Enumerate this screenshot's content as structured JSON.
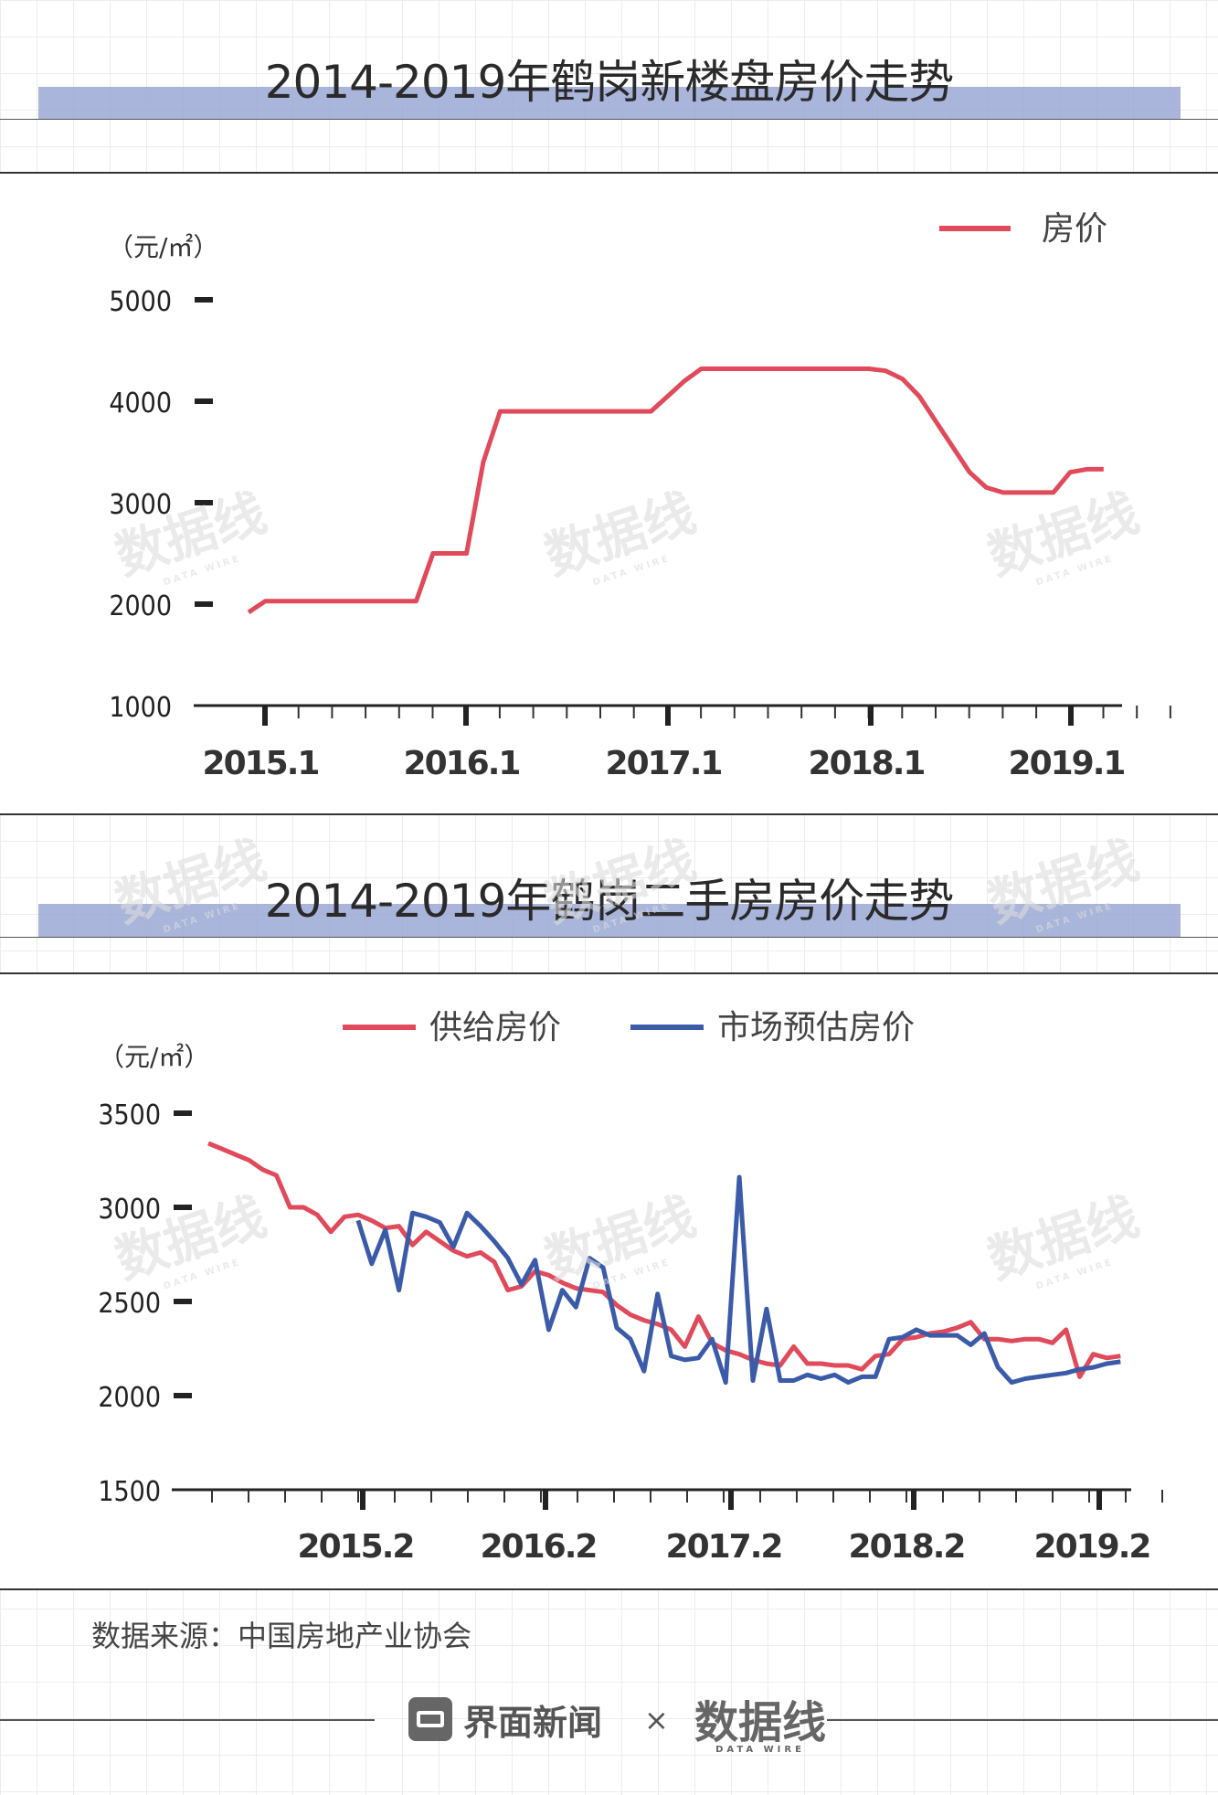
{
  "chart1": {
    "title": "2014-2019年鹤岗新楼盘房价走势",
    "unit": "（元/㎡）",
    "legend": [
      "房价"
    ],
    "chart_data": {
      "type": "line",
      "title": "2014-2019年鹤岗新楼盘房价走势",
      "ylabel": "（元/㎡）",
      "ylim": [
        1000,
        5000
      ],
      "yticks": [
        "5000",
        "4000",
        "3000",
        "2000",
        "1000"
      ],
      "xticks": [
        "2015.1",
        "2016.1",
        "2017.1",
        "2018.1",
        "2019.1"
      ],
      "series": [
        {
          "name": "房价",
          "color": "#e04a5a",
          "x": [
            "2014.12",
            "2015.1",
            "2015.2",
            "2015.3",
            "2015.4",
            "2015.5",
            "2015.6",
            "2015.7",
            "2015.8",
            "2015.9",
            "2015.10",
            "2015.11",
            "2015.12",
            "2016.1",
            "2016.2",
            "2016.3",
            "2016.4",
            "2016.5",
            "2016.6",
            "2016.7",
            "2016.8",
            "2016.9",
            "2016.10",
            "2016.11",
            "2016.12",
            "2017.1",
            "2017.2",
            "2017.3",
            "2017.4",
            "2017.5",
            "2017.6",
            "2017.7",
            "2017.8",
            "2017.9",
            "2017.10",
            "2017.11",
            "2017.12",
            "2018.1",
            "2018.2",
            "2018.3",
            "2018.4",
            "2018.5",
            "2018.6",
            "2018.7",
            "2018.8",
            "2018.9",
            "2018.10",
            "2018.11",
            "2018.12",
            "2019.1",
            "2019.2",
            "2019.3"
          ],
          "values": [
            1920,
            2030,
            2030,
            2030,
            2030,
            2030,
            2030,
            2030,
            2030,
            2030,
            2030,
            2500,
            2500,
            2500,
            3400,
            3900,
            3900,
            3900,
            3900,
            3900,
            3900,
            3900,
            3900,
            3900,
            3900,
            4050,
            4200,
            4320,
            4320,
            4320,
            4320,
            4320,
            4320,
            4320,
            4320,
            4320,
            4320,
            4320,
            4300,
            4220,
            4050,
            3800,
            3550,
            3300,
            3150,
            3100,
            3100,
            3100,
            3100,
            3300,
            3330,
            3330
          ]
        }
      ]
    }
  },
  "chart2": {
    "title": "2014-2019年鹤岗二手房房价走势",
    "unit": "（元/㎡）",
    "legend": [
      "供给房价",
      "市场预估房价"
    ],
    "chart_data": {
      "type": "line",
      "title": "2014-2019年鹤岗二手房房价走势",
      "ylabel": "（元/㎡）",
      "ylim": [
        1500,
        3500
      ],
      "yticks": [
        "3500",
        "3000",
        "2500",
        "2000",
        "1500"
      ],
      "xticks": [
        "2015.2",
        "2016.2",
        "2017.2",
        "2018.2",
        "2019.2"
      ],
      "x_start": "2014.4",
      "series": [
        {
          "name": "供给房价",
          "color": "#e04a5a",
          "values": [
            3340,
            3310,
            3280,
            3250,
            3200,
            3170,
            3000,
            3000,
            2960,
            2870,
            2950,
            2960,
            2930,
            2890,
            2900,
            2800,
            2870,
            2820,
            2770,
            2740,
            2760,
            2710,
            2560,
            2580,
            2660,
            2640,
            2600,
            2570,
            2560,
            2550,
            2480,
            2430,
            2400,
            2380,
            2350,
            2260,
            2420,
            2280,
            2240,
            2220,
            2190,
            2170,
            2160,
            2260,
            2170,
            2170,
            2160,
            2160,
            2140,
            2210,
            2220,
            2300,
            2310,
            2330,
            2340,
            2360,
            2390,
            2300,
            2300,
            2290,
            2300,
            2300,
            2280,
            2350,
            2100,
            2220,
            2200,
            2210
          ]
        },
        {
          "name": "市场预估房价",
          "color": "#3b5ba9",
          "values": [
            null,
            null,
            null,
            null,
            null,
            null,
            null,
            null,
            null,
            null,
            null,
            2930,
            2700,
            2880,
            2560,
            2970,
            2950,
            2920,
            2790,
            2970,
            2900,
            2820,
            2730,
            2590,
            2720,
            2350,
            2560,
            2470,
            2730,
            2680,
            2360,
            2300,
            2130,
            2540,
            2210,
            2190,
            2200,
            2300,
            2070,
            3160,
            2080,
            2460,
            2080,
            2080,
            2110,
            2090,
            2110,
            2070,
            2100,
            2100,
            2300,
            2310,
            2350,
            2320,
            2320,
            2320,
            2270,
            2330,
            2150,
            2070,
            2090,
            2100,
            2110,
            2120,
            2140,
            2150,
            2170,
            2180
          ]
        }
      ]
    }
  },
  "source": "数据来源：中国房地产业协会",
  "footer": {
    "brand": "界面新闻",
    "times": "×",
    "partner": "数据线",
    "partner_sub": "DATA WIRE"
  },
  "watermark": {
    "text": "数据线",
    "sub": "DATA WIRE"
  }
}
